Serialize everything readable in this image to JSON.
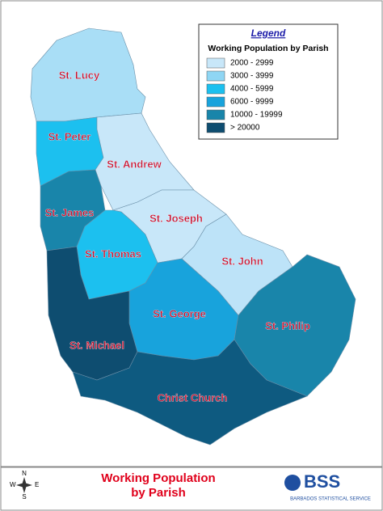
{
  "legend": {
    "title": "Legend",
    "subtitle": "Working Population by Parish",
    "items": [
      {
        "label": "2000 - 2999",
        "color": "#c8e7f9"
      },
      {
        "label": "3000 - 3999",
        "color": "#8fd6f4"
      },
      {
        "label": "4000 - 5999",
        "color": "#1cc0ef"
      },
      {
        "label": "6000 - 9999",
        "color": "#18a3dc"
      },
      {
        "label": "10000 - 19999",
        "color": "#1985aa"
      },
      {
        "label": "> 20000",
        "color": "#0e4d70"
      }
    ]
  },
  "parishes": [
    {
      "name": "St. Lucy",
      "color": "#a9def6"
    },
    {
      "name": "St. Peter",
      "color": "#1cc0ef"
    },
    {
      "name": "St. Andrew",
      "color": "#c8e7f9"
    },
    {
      "name": "St. Joseph",
      "color": "#c8e7f9"
    },
    {
      "name": "St. James",
      "color": "#1985aa"
    },
    {
      "name": "St. Thomas",
      "color": "#1cc0ef"
    },
    {
      "name": "St. John",
      "color": "#bde3f8"
    },
    {
      "name": "St. George",
      "color": "#18a3dc"
    },
    {
      "name": "St. Philip",
      "color": "#1985aa"
    },
    {
      "name": "St. Michael",
      "color": "#0e4d70"
    },
    {
      "name": "Christ Church",
      "color": "#0e5a80"
    }
  ],
  "footer": {
    "title_line1": "Working Population",
    "title_line2": "by Parish",
    "compass": {
      "n": "N",
      "e": "E",
      "s": "S",
      "w": "W"
    },
    "logo": "BSS",
    "logo_sub": "BARBADOS STATISTICAL SERVICE"
  }
}
